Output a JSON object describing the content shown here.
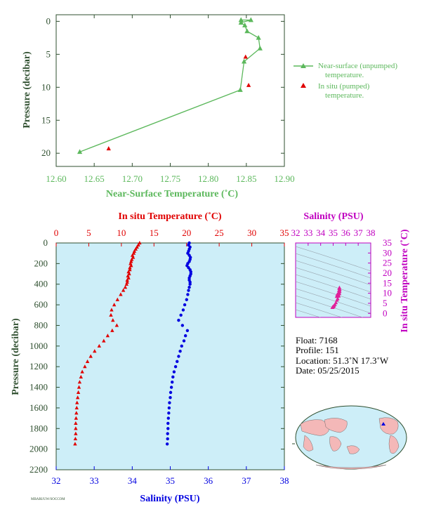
{
  "colors": {
    "green": "#5cb85c",
    "red": "#e00000",
    "blue": "#0000e0",
    "magenta": "#c000c0",
    "axis_dark": "#2f4f2f",
    "panel_bg": "#cdeef8"
  },
  "chart_data": [
    {
      "id": "near_surface",
      "type": "line",
      "xlabel": "Near-Surface Temperature (˚C)",
      "ylabel": "Pressure (decibar)",
      "xlim": [
        12.6,
        12.9
      ],
      "ylim": [
        22,
        -1
      ],
      "xticks": [
        "12.60",
        "12.65",
        "12.70",
        "12.75",
        "12.80",
        "12.85",
        "12.90"
      ],
      "yticks": [
        "0",
        "5",
        "10",
        "15",
        "20"
      ],
      "series": [
        {
          "name": "Near-surface (unpumped) temperature.",
          "style": "line-triangle",
          "x": [
            12.843,
            12.856,
            12.843,
            12.848,
            12.851,
            12.866,
            12.868,
            12.847,
            12.842,
            12.631
          ],
          "y": [
            -0.2,
            -0.2,
            0.2,
            0.6,
            1.5,
            2.5,
            4.1,
            6.1,
            10.4,
            19.8
          ]
        },
        {
          "name": "In situ (pumped) temperature.",
          "style": "triangle",
          "x": [
            12.849,
            12.853,
            12.669
          ],
          "y": [
            5.4,
            9.7,
            19.3
          ]
        }
      ],
      "legend": [
        {
          "line1": "Near-surface (unpumped)",
          "line2": "temperature."
        },
        {
          "line1": "In situ (pumped)",
          "line2": "temperature."
        }
      ],
      "legend_position": "right"
    },
    {
      "id": "profile",
      "type": "scatter",
      "top_xlabel": "In situ Temperature (˚C)",
      "bottom_xlabel": "Salinity (PSU)",
      "ylabel": "Pressure (decibar)",
      "temp_lim": [
        0,
        35
      ],
      "sal_lim": [
        32,
        38
      ],
      "ylim": [
        2200,
        0
      ],
      "temp_ticks": [
        "0",
        "5",
        "10",
        "15",
        "20",
        "25",
        "30",
        "35"
      ],
      "sal_ticks": [
        "32",
        "33",
        "34",
        "35",
        "36",
        "37",
        "38"
      ],
      "yticks": [
        "0",
        "200",
        "400",
        "600",
        "800",
        "1000",
        "1200",
        "1400",
        "1600",
        "1800",
        "2000",
        "2200"
      ],
      "temperature": {
        "p": [
          0,
          20,
          40,
          60,
          80,
          100,
          120,
          140,
          160,
          180,
          200,
          220,
          240,
          260,
          280,
          300,
          320,
          340,
          360,
          380,
          400,
          430,
          460,
          500,
          550,
          600,
          650,
          700,
          750,
          800,
          850,
          900,
          950,
          1000,
          1050,
          1100,
          1150,
          1200,
          1250,
          1300,
          1350,
          1400,
          1450,
          1500,
          1550,
          1600,
          1650,
          1700,
          1750,
          1800,
          1850,
          1900,
          1950
        ],
        "t": [
          12.8,
          12.6,
          12.4,
          12.2,
          12.0,
          11.9,
          11.7,
          11.8,
          11.6,
          11.5,
          11.4,
          11.5,
          11.3,
          11.3,
          11.1,
          11.2,
          11.0,
          11.1,
          10.9,
          10.9,
          10.8,
          10.6,
          10.3,
          9.9,
          9.4,
          8.9,
          8.5,
          8.4,
          8.7,
          9.3,
          8.6,
          7.9,
          7.3,
          6.6,
          5.9,
          5.3,
          4.8,
          4.4,
          4.0,
          3.8,
          3.6,
          3.5,
          3.4,
          3.3,
          3.2,
          3.15,
          3.1,
          3.05,
          3.0,
          3.0,
          3.0,
          2.95,
          2.9
        ]
      },
      "salinity": {
        "p": [
          0,
          20,
          40,
          60,
          80,
          100,
          120,
          140,
          160,
          180,
          200,
          220,
          240,
          260,
          280,
          300,
          320,
          340,
          360,
          380,
          400,
          430,
          460,
          500,
          550,
          600,
          650,
          700,
          750,
          800,
          850,
          900,
          950,
          1000,
          1050,
          1100,
          1150,
          1200,
          1250,
          1300,
          1350,
          1400,
          1450,
          1500,
          1550,
          1600,
          1650,
          1700,
          1750,
          1800,
          1850,
          1900,
          1950
        ],
        "s": [
          35.5,
          35.48,
          35.52,
          35.5,
          35.48,
          35.46,
          35.5,
          35.53,
          35.52,
          35.5,
          35.46,
          35.44,
          35.48,
          35.52,
          35.54,
          35.54,
          35.52,
          35.5,
          35.5,
          35.52,
          35.52,
          35.5,
          35.48,
          35.46,
          35.43,
          35.38,
          35.34,
          35.28,
          35.22,
          35.32,
          35.45,
          35.4,
          35.36,
          35.3,
          35.26,
          35.22,
          35.18,
          35.14,
          35.1,
          35.07,
          35.05,
          35.03,
          35.01,
          35.0,
          34.98,
          34.97,
          34.96,
          34.95,
          34.94,
          34.94,
          34.93,
          34.93,
          34.92
        ]
      }
    },
    {
      "id": "ts",
      "type": "scatter",
      "top_xlabel": "Salinity (PSU)",
      "right_ylabel": "In situ Temperature (˚C)",
      "sal_lim": [
        32,
        38
      ],
      "temp_lim": [
        -2,
        35
      ],
      "sal_ticks": [
        "32",
        "33",
        "34",
        "35",
        "36",
        "37",
        "38"
      ],
      "temp_ticks": [
        "0",
        "5",
        "10",
        "15",
        "20",
        "25",
        "30",
        "35"
      ],
      "points_s": [
        35.5,
        35.48,
        35.52,
        35.5,
        35.48,
        35.46,
        35.5,
        35.52,
        35.46,
        35.5,
        35.43,
        35.38,
        35.34,
        35.28,
        35.32,
        35.45,
        35.36,
        35.3,
        35.22,
        35.14,
        35.07,
        35.03,
        35.0,
        34.97,
        34.95,
        34.93
      ],
      "points_t": [
        12.8,
        12.4,
        12.0,
        11.7,
        11.5,
        11.3,
        11.1,
        10.9,
        10.6,
        9.9,
        9.4,
        8.9,
        8.5,
        8.4,
        9.3,
        8.6,
        7.3,
        6.6,
        5.3,
        4.4,
        3.8,
        3.5,
        3.3,
        3.1,
        3.0,
        2.9
      ]
    }
  ],
  "float_info": {
    "float": "Float:  7168",
    "profile": "Profile:  151",
    "location": "Location:  51.3˚N  17.3˚W",
    "date": "Date:  05/25/2015"
  },
  "footer_code": "MBARI/UW/SOCCOM"
}
